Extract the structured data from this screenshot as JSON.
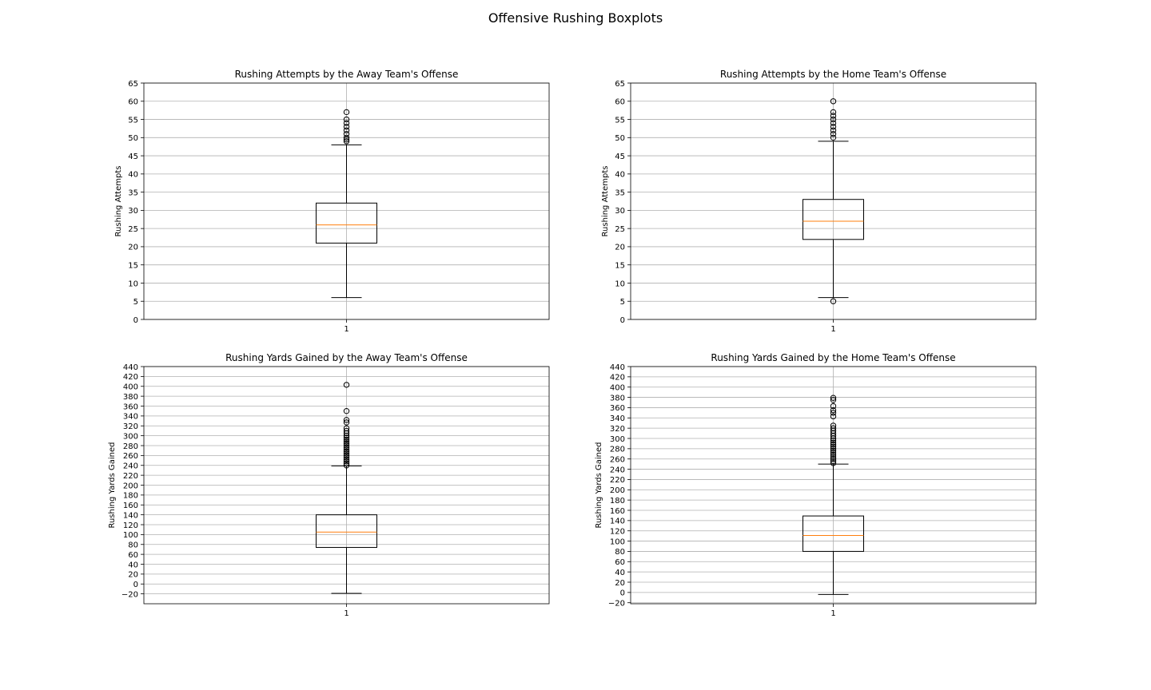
{
  "figure": {
    "title": "Offensive Rushing Boxplots"
  },
  "style": {
    "box": "#000000",
    "median": "#ff7f0e",
    "grid": "#b0b0b0",
    "flier": "#000000"
  },
  "chart_data": [
    {
      "type": "boxplot",
      "title": "Rushing Attempts by the Away Team's Offense",
      "xlabel": "",
      "ylabel": "Rushing Attempts",
      "categories": [
        "1"
      ],
      "ylim": [
        0,
        65
      ],
      "yticks": [
        0,
        5,
        10,
        15,
        20,
        25,
        30,
        35,
        40,
        45,
        50,
        55,
        60,
        65
      ],
      "grid": true,
      "box": {
        "whisker_low": 6,
        "q1": 21,
        "median": 26,
        "q3": 32,
        "whisker_high": 48
      },
      "outliers": [
        49,
        49.5,
        50,
        51,
        52,
        53,
        54,
        55,
        57
      ]
    },
    {
      "type": "boxplot",
      "title": "Rushing Attempts by the Home Team's Offense",
      "xlabel": "",
      "ylabel": "Rushing Attempts",
      "categories": [
        "1"
      ],
      "ylim": [
        0,
        65
      ],
      "yticks": [
        0,
        5,
        10,
        15,
        20,
        25,
        30,
        35,
        40,
        45,
        50,
        55,
        60,
        65
      ],
      "grid": true,
      "box": {
        "whisker_low": 6,
        "q1": 22,
        "median": 27,
        "q3": 33,
        "whisker_high": 49
      },
      "outliers": [
        5,
        50,
        51,
        52,
        53,
        54,
        55,
        56,
        57,
        60
      ]
    },
    {
      "type": "boxplot",
      "title": "Rushing Yards Gained by the Away Team's Offense",
      "xlabel": "",
      "ylabel": "Rushing Yards Gained",
      "categories": [
        "1"
      ],
      "ylim": [
        -40,
        440
      ],
      "yticks": [
        -20,
        0,
        20,
        40,
        60,
        80,
        100,
        120,
        140,
        160,
        180,
        200,
        220,
        240,
        260,
        280,
        300,
        320,
        340,
        360,
        380,
        400,
        420,
        440
      ],
      "grid": true,
      "box": {
        "whisker_low": -19,
        "q1": 74,
        "median": 105,
        "q3": 140,
        "whisker_high": 239
      },
      "outliers": [
        240,
        244,
        248,
        252,
        256,
        260,
        264,
        268,
        272,
        276,
        280,
        284,
        288,
        292,
        296,
        300,
        305,
        310,
        315,
        327,
        332,
        350,
        403
      ]
    },
    {
      "type": "boxplot",
      "title": "Rushing Yards Gained by the Home Team's Offense",
      "xlabel": "",
      "ylabel": "Rushing Yards Gained",
      "categories": [
        "1"
      ],
      "ylim": [
        -22,
        440
      ],
      "yticks": [
        -20,
        0,
        20,
        40,
        60,
        80,
        100,
        120,
        140,
        160,
        180,
        200,
        220,
        240,
        260,
        280,
        300,
        320,
        340,
        360,
        380,
        400,
        420,
        440
      ],
      "grid": true,
      "box": {
        "whisker_low": -4,
        "q1": 80,
        "median": 111,
        "q3": 149,
        "whisker_high": 250
      },
      "outliers": [
        252,
        256,
        260,
        264,
        268,
        272,
        276,
        280,
        284,
        288,
        292,
        296,
        300,
        305,
        310,
        315,
        320,
        325,
        343,
        350,
        355,
        363,
        375,
        379
      ]
    }
  ]
}
